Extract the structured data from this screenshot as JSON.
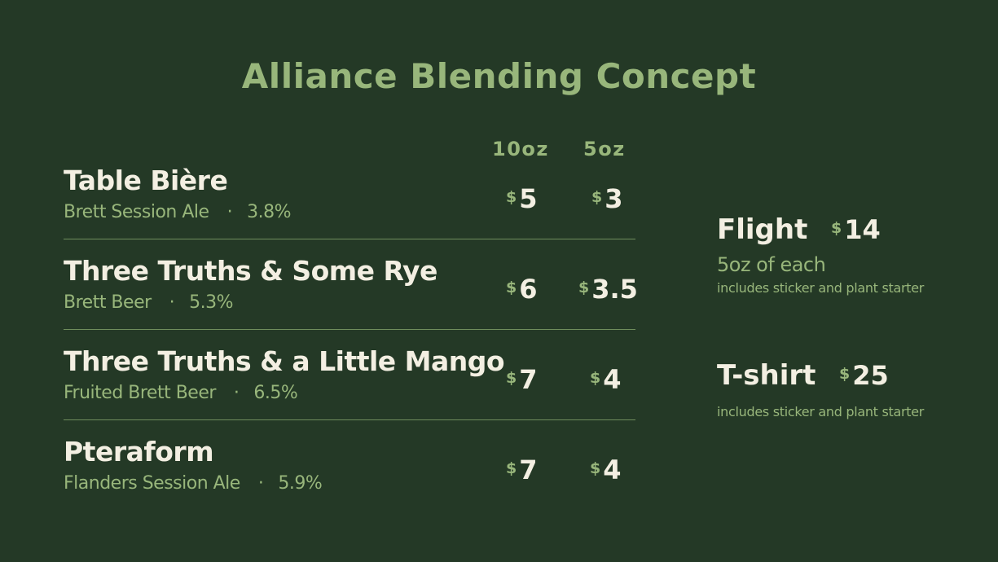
{
  "colors": {
    "background": "#243926",
    "accent": "#98b67b",
    "text": "#f3efe2",
    "divider": "#6f8d5c"
  },
  "title": "Alliance Blending Concept",
  "columns": {
    "size_large": "10oz",
    "size_small": "5oz"
  },
  "currency_symbol": "$",
  "beers": [
    {
      "name": "Table Bière",
      "style": "Brett Session Ale",
      "separator": "·",
      "abv": "3.8%",
      "price_10oz": "5",
      "price_5oz": "3"
    },
    {
      "name": "Three Truths & Some Rye",
      "style": "Brett Beer",
      "separator": "·",
      "abv": "5.3%",
      "price_10oz": "6",
      "price_5oz": "3.5"
    },
    {
      "name": "Three Truths & a Little Mango",
      "style": "Fruited Brett Beer",
      "separator": "·",
      "abv": "6.5%",
      "price_10oz": "7",
      "price_5oz": "4"
    },
    {
      "name": "Pteraform",
      "style": "Flanders Session Ale",
      "separator": "·",
      "abv": "5.9%",
      "price_10oz": "7",
      "price_5oz": "4"
    }
  ],
  "flight": {
    "name": "Flight",
    "price": "14",
    "description": "5oz of each",
    "note": "includes sticker and plant starter"
  },
  "tshirt": {
    "name": "T-shirt",
    "price": "25",
    "note": "includes sticker and plant starter"
  }
}
